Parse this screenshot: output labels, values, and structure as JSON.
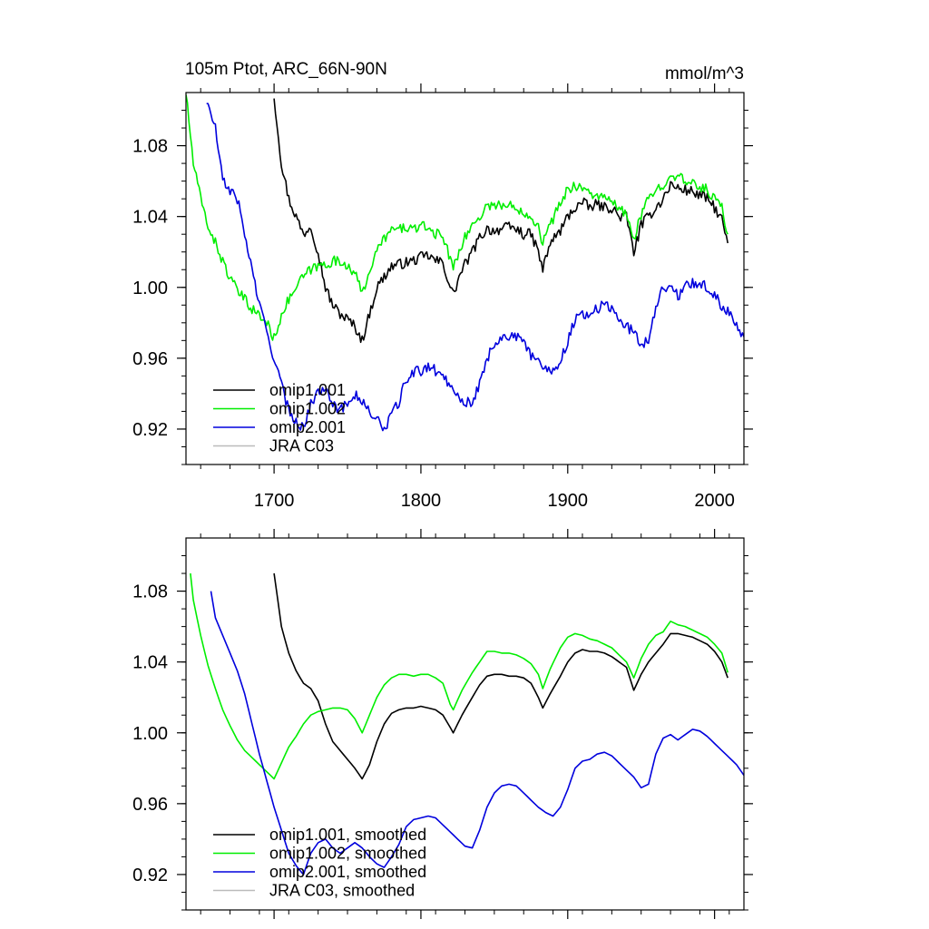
{
  "chart_data": [
    {
      "type": "line",
      "title": "105m Ptot, ARC_66N-90N",
      "units": "mmol/m^3",
      "xlim": [
        1640,
        2020
      ],
      "ylim": [
        0.9,
        1.11
      ],
      "xticks": [
        1700,
        1800,
        1900,
        2000
      ],
      "xtick_labels": [
        "1700",
        "1800",
        "1900",
        "2000"
      ],
      "yticks": [
        0.92,
        0.96,
        1.0,
        1.04,
        1.08
      ],
      "ytick_labels": [
        "0.92",
        "0.96",
        "1.00",
        "1.04",
        "1.08"
      ],
      "legend_location": "bottom-left",
      "series": [
        {
          "name": "omip1.001",
          "color": "#000000",
          "smooth": false,
          "x": [
            1700,
            1705,
            1710,
            1715,
            1720,
            1725,
            1730,
            1735,
            1740,
            1745,
            1750,
            1755,
            1760,
            1765,
            1770,
            1775,
            1780,
            1785,
            1790,
            1795,
            1800,
            1805,
            1810,
            1815,
            1820,
            1822,
            1828,
            1835,
            1840,
            1845,
            1850,
            1855,
            1860,
            1865,
            1870,
            1875,
            1880,
            1883,
            1888,
            1895,
            1900,
            1905,
            1910,
            1915,
            1920,
            1925,
            1930,
            1935,
            1940,
            1945,
            1950,
            1955,
            1960,
            1965,
            1970,
            1975,
            1980,
            1985,
            1990,
            1995,
            2000,
            2005,
            2009
          ],
          "y": [
            1.108,
            1.07,
            1.05,
            1.04,
            1.03,
            1.035,
            1.02,
            1.0,
            0.99,
            0.985,
            0.982,
            0.978,
            0.97,
            0.985,
            1.0,
            1.006,
            1.012,
            1.013,
            1.014,
            1.015,
            1.017,
            1.018,
            1.015,
            1.014,
            1.0,
            0.996,
            1.01,
            1.02,
            1.028,
            1.033,
            1.032,
            1.033,
            1.034,
            1.033,
            1.03,
            1.03,
            1.02,
            1.01,
            1.025,
            1.032,
            1.04,
            1.045,
            1.048,
            1.045,
            1.047,
            1.045,
            1.045,
            1.04,
            1.04,
            1.02,
            1.035,
            1.04,
            1.045,
            1.05,
            1.058,
            1.056,
            1.055,
            1.054,
            1.052,
            1.05,
            1.045,
            1.038,
            1.025
          ]
        },
        {
          "name": "omip1.002",
          "color": "#00ee00",
          "smooth": false,
          "x": [
            1640,
            1645,
            1650,
            1655,
            1660,
            1665,
            1670,
            1675,
            1680,
            1685,
            1690,
            1695,
            1700,
            1705,
            1710,
            1715,
            1720,
            1725,
            1730,
            1735,
            1740,
            1745,
            1750,
            1755,
            1760,
            1765,
            1770,
            1775,
            1780,
            1785,
            1790,
            1795,
            1800,
            1805,
            1810,
            1815,
            1820,
            1822,
            1828,
            1835,
            1840,
            1845,
            1850,
            1855,
            1860,
            1865,
            1870,
            1875,
            1880,
            1883,
            1888,
            1895,
            1900,
            1905,
            1910,
            1915,
            1920,
            1925,
            1930,
            1935,
            1940,
            1945,
            1950,
            1955,
            1960,
            1965,
            1970,
            1975,
            1980,
            1985,
            1990,
            1995,
            2000,
            2005,
            2009
          ],
          "y": [
            1.11,
            1.07,
            1.05,
            1.035,
            1.025,
            1.015,
            1.005,
            0.998,
            0.993,
            0.988,
            0.984,
            0.98,
            0.971,
            0.985,
            0.993,
            1.0,
            1.006,
            1.01,
            1.012,
            1.013,
            1.015,
            1.014,
            1.013,
            1.008,
            0.996,
            1.01,
            1.02,
            1.028,
            1.032,
            1.033,
            1.034,
            1.033,
            1.034,
            1.034,
            1.03,
            1.03,
            1.015,
            1.012,
            1.025,
            1.035,
            1.04,
            1.046,
            1.047,
            1.046,
            1.046,
            1.045,
            1.043,
            1.04,
            1.035,
            1.025,
            1.035,
            1.048,
            1.055,
            1.058,
            1.056,
            1.053,
            1.052,
            1.05,
            1.048,
            1.045,
            1.04,
            1.028,
            1.04,
            1.05,
            1.055,
            1.058,
            1.065,
            1.062,
            1.06,
            1.058,
            1.057,
            1.055,
            1.05,
            1.045,
            1.03
          ]
        },
        {
          "name": "omip2.001",
          "color": "#0000dd",
          "smooth": false,
          "x": [
            1654,
            1660,
            1665,
            1670,
            1675,
            1680,
            1685,
            1690,
            1695,
            1700,
            1705,
            1710,
            1715,
            1720,
            1725,
            1730,
            1735,
            1740,
            1745,
            1750,
            1755,
            1760,
            1765,
            1770,
            1775,
            1780,
            1785,
            1790,
            1795,
            1800,
            1805,
            1810,
            1815,
            1820,
            1825,
            1830,
            1835,
            1840,
            1845,
            1850,
            1855,
            1860,
            1865,
            1870,
            1875,
            1880,
            1885,
            1890,
            1895,
            1900,
            1905,
            1910,
            1915,
            1920,
            1925,
            1930,
            1935,
            1940,
            1945,
            1950,
            1955,
            1960,
            1965,
            1970,
            1975,
            1980,
            1985,
            1990,
            1995,
            2000,
            2005,
            2010,
            2015,
            2020
          ],
          "y": [
            1.105,
            1.09,
            1.06,
            1.055,
            1.05,
            1.03,
            1.01,
            0.99,
            0.975,
            0.96,
            0.945,
            0.93,
            0.925,
            0.92,
            0.935,
            0.94,
            0.945,
            0.935,
            0.93,
            0.935,
            0.94,
            0.935,
            0.93,
            0.925,
            0.92,
            0.928,
            0.935,
            0.948,
            0.952,
            0.953,
            0.955,
            0.953,
            0.95,
            0.945,
            0.94,
            0.935,
            0.935,
            0.945,
            0.96,
            0.968,
            0.972,
            0.973,
            0.972,
            0.968,
            0.962,
            0.958,
            0.955,
            0.953,
            0.958,
            0.97,
            0.982,
            0.985,
            0.985,
            0.988,
            0.99,
            0.988,
            0.982,
            0.978,
            0.975,
            0.968,
            0.97,
            0.99,
            1.0,
            1.0,
            0.995,
            1.0,
            1.003,
            1.002,
            1.0,
            0.995,
            0.99,
            0.985,
            0.98,
            0.972
          ]
        },
        {
          "name": "JRA C03",
          "color": "#bbbbbb",
          "smooth": false,
          "x": [],
          "y": []
        }
      ]
    },
    {
      "type": "line",
      "title": "",
      "xlim": [
        1640,
        2020
      ],
      "ylim": [
        0.9,
        1.11
      ],
      "xticks": [
        1700,
        1800,
        1900,
        2000
      ],
      "yticks": [
        0.92,
        0.96,
        1.0,
        1.04,
        1.08
      ],
      "ytick_labels": [
        "0.92",
        "0.96",
        "1.00",
        "1.04",
        "1.08"
      ],
      "legend_location": "bottom-left",
      "series": [
        {
          "name": "omip1.001, smoothed",
          "color": "#000000",
          "smooth": true,
          "x": [
            1700,
            1705,
            1710,
            1715,
            1720,
            1725,
            1730,
            1735,
            1740,
            1745,
            1750,
            1755,
            1760,
            1765,
            1770,
            1775,
            1780,
            1785,
            1790,
            1795,
            1800,
            1805,
            1810,
            1815,
            1820,
            1822,
            1828,
            1835,
            1840,
            1845,
            1850,
            1855,
            1860,
            1865,
            1870,
            1875,
            1880,
            1883,
            1888,
            1895,
            1900,
            1905,
            1910,
            1915,
            1920,
            1925,
            1930,
            1935,
            1940,
            1945,
            1950,
            1955,
            1960,
            1965,
            1970,
            1975,
            1980,
            1985,
            1990,
            1995,
            2000,
            2005,
            2009
          ],
          "y": [
            1.09,
            1.06,
            1.045,
            1.035,
            1.028,
            1.025,
            1.018,
            1.005,
            0.995,
            0.99,
            0.985,
            0.98,
            0.974,
            0.982,
            0.995,
            1.005,
            1.011,
            1.013,
            1.014,
            1.014,
            1.015,
            1.014,
            1.013,
            1.01,
            1.003,
            1.0,
            1.01,
            1.02,
            1.027,
            1.032,
            1.033,
            1.033,
            1.032,
            1.032,
            1.031,
            1.028,
            1.02,
            1.014,
            1.022,
            1.032,
            1.04,
            1.045,
            1.047,
            1.046,
            1.046,
            1.045,
            1.043,
            1.04,
            1.037,
            1.024,
            1.033,
            1.04,
            1.045,
            1.05,
            1.056,
            1.056,
            1.055,
            1.054,
            1.052,
            1.05,
            1.046,
            1.04,
            1.031
          ]
        },
        {
          "name": "omip1.002, smoothed",
          "color": "#00ee00",
          "smooth": true,
          "x": [
            1643,
            1645,
            1650,
            1655,
            1660,
            1665,
            1670,
            1675,
            1680,
            1685,
            1690,
            1695,
            1700,
            1705,
            1710,
            1715,
            1720,
            1725,
            1730,
            1735,
            1740,
            1745,
            1750,
            1755,
            1760,
            1765,
            1770,
            1775,
            1780,
            1785,
            1790,
            1795,
            1800,
            1805,
            1810,
            1815,
            1820,
            1822,
            1828,
            1835,
            1840,
            1845,
            1850,
            1855,
            1860,
            1865,
            1870,
            1875,
            1880,
            1883,
            1888,
            1895,
            1900,
            1905,
            1910,
            1915,
            1920,
            1925,
            1930,
            1935,
            1940,
            1945,
            1950,
            1955,
            1960,
            1965,
            1970,
            1975,
            1980,
            1985,
            1990,
            1995,
            2000,
            2005,
            2009
          ],
          "y": [
            1.09,
            1.075,
            1.055,
            1.038,
            1.025,
            1.013,
            1.004,
            0.996,
            0.99,
            0.986,
            0.982,
            0.978,
            0.974,
            0.983,
            0.992,
            0.998,
            1.005,
            1.01,
            1.012,
            1.013,
            1.014,
            1.014,
            1.013,
            1.008,
            1.0,
            1.01,
            1.02,
            1.027,
            1.031,
            1.033,
            1.033,
            1.032,
            1.033,
            1.033,
            1.031,
            1.028,
            1.016,
            1.013,
            1.024,
            1.034,
            1.04,
            1.046,
            1.046,
            1.045,
            1.045,
            1.044,
            1.042,
            1.039,
            1.033,
            1.025,
            1.036,
            1.048,
            1.054,
            1.056,
            1.055,
            1.053,
            1.052,
            1.05,
            1.048,
            1.044,
            1.04,
            1.031,
            1.042,
            1.05,
            1.055,
            1.057,
            1.063,
            1.061,
            1.06,
            1.058,
            1.056,
            1.054,
            1.05,
            1.045,
            1.034
          ]
        },
        {
          "name": "omip2.001, smoothed",
          "color": "#0000dd",
          "smooth": true,
          "x": [
            1657,
            1660,
            1665,
            1670,
            1675,
            1680,
            1685,
            1690,
            1695,
            1700,
            1705,
            1710,
            1715,
            1720,
            1725,
            1730,
            1735,
            1740,
            1745,
            1750,
            1755,
            1760,
            1765,
            1770,
            1775,
            1780,
            1785,
            1790,
            1795,
            1800,
            1805,
            1810,
            1815,
            1820,
            1825,
            1830,
            1835,
            1840,
            1845,
            1850,
            1855,
            1860,
            1865,
            1870,
            1875,
            1880,
            1885,
            1890,
            1895,
            1900,
            1905,
            1910,
            1915,
            1920,
            1925,
            1930,
            1935,
            1940,
            1945,
            1950,
            1955,
            1960,
            1965,
            1970,
            1975,
            1980,
            1985,
            1990,
            1995,
            2000,
            2005,
            2010,
            2015,
            2020
          ],
          "y": [
            1.08,
            1.065,
            1.055,
            1.045,
            1.035,
            1.022,
            1.005,
            0.988,
            0.973,
            0.958,
            0.945,
            0.932,
            0.925,
            0.92,
            0.932,
            0.938,
            0.94,
            0.935,
            0.932,
            0.935,
            0.938,
            0.935,
            0.93,
            0.926,
            0.924,
            0.93,
            0.937,
            0.947,
            0.951,
            0.952,
            0.953,
            0.952,
            0.948,
            0.944,
            0.94,
            0.936,
            0.935,
            0.945,
            0.958,
            0.966,
            0.97,
            0.971,
            0.97,
            0.966,
            0.962,
            0.958,
            0.955,
            0.953,
            0.958,
            0.968,
            0.98,
            0.984,
            0.985,
            0.988,
            0.989,
            0.987,
            0.983,
            0.979,
            0.975,
            0.969,
            0.971,
            0.988,
            0.997,
            0.999,
            0.996,
            0.999,
            1.002,
            1.001,
            0.998,
            0.994,
            0.99,
            0.986,
            0.982,
            0.976
          ]
        },
        {
          "name": "JRA C03, smoothed",
          "color": "#bbbbbb",
          "smooth": true,
          "x": [],
          "y": []
        }
      ]
    }
  ]
}
